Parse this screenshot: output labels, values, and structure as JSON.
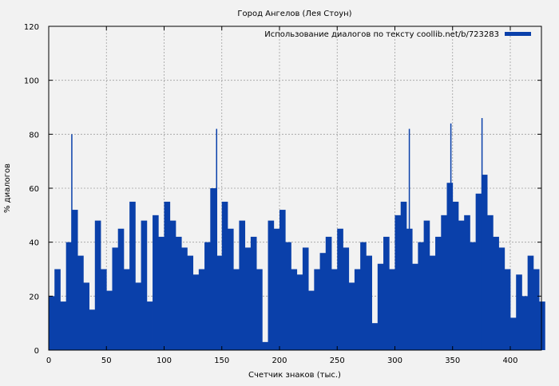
{
  "chart_data": {
    "type": "bar",
    "title": "Город Ангелов (Лея Стоун)",
    "xlabel": "Счетчик знаков (тыс.)",
    "ylabel": "% диалогов",
    "xlim": [
      0,
      427
    ],
    "ylim": [
      0,
      120
    ],
    "xticks": [
      0,
      50,
      100,
      150,
      200,
      250,
      300,
      350,
      400
    ],
    "yticks": [
      0,
      20,
      40,
      60,
      80,
      100,
      120
    ],
    "grid": true,
    "legend_position": "top-right",
    "colors": {
      "series": "#0a40aa",
      "background": "#f2f2f2",
      "plot_background": "#f2f2f2",
      "grid": "#a0a0a0"
    },
    "series": [
      {
        "name": "Использование диалогов по тексту coollib.net/b/723283",
        "x": [
          0,
          5,
          10,
          15,
          20,
          25,
          30,
          35,
          40,
          45,
          50,
          55,
          60,
          65,
          70,
          75,
          80,
          85,
          90,
          95,
          100,
          105,
          110,
          115,
          120,
          125,
          130,
          135,
          140,
          145,
          150,
          155,
          160,
          165,
          170,
          175,
          180,
          185,
          190,
          195,
          200,
          205,
          210,
          215,
          220,
          225,
          230,
          235,
          240,
          245,
          250,
          255,
          260,
          265,
          270,
          275,
          280,
          285,
          290,
          295,
          300,
          305,
          310,
          315,
          320,
          325,
          330,
          335,
          340,
          345,
          350,
          355,
          360,
          365,
          370,
          375,
          380,
          385,
          390,
          395,
          400,
          405,
          410,
          415,
          420,
          425
        ],
        "values": [
          20,
          30,
          18,
          40,
          52,
          35,
          25,
          15,
          48,
          30,
          22,
          38,
          45,
          30,
          55,
          25,
          48,
          18,
          50,
          42,
          55,
          48,
          42,
          38,
          35,
          28,
          30,
          40,
          60,
          35,
          55,
          45,
          30,
          48,
          38,
          42,
          30,
          3,
          48,
          45,
          52,
          40,
          30,
          28,
          38,
          22,
          30,
          36,
          42,
          30,
          45,
          38,
          25,
          30,
          40,
          35,
          10,
          32,
          42,
          30,
          50,
          55,
          45,
          32,
          40,
          48,
          35,
          42,
          50,
          62,
          55,
          48,
          50,
          40,
          58,
          65,
          50,
          42,
          38,
          30,
          12,
          28,
          20,
          35,
          30,
          18
        ]
      }
    ],
    "annotations": [
      {
        "x": 19.5,
        "value": 80
      },
      {
        "x": 145,
        "value": 82
      },
      {
        "x": 312,
        "value": 82
      },
      {
        "x": 348,
        "value": 84
      },
      {
        "x": 375,
        "value": 86
      }
    ]
  }
}
